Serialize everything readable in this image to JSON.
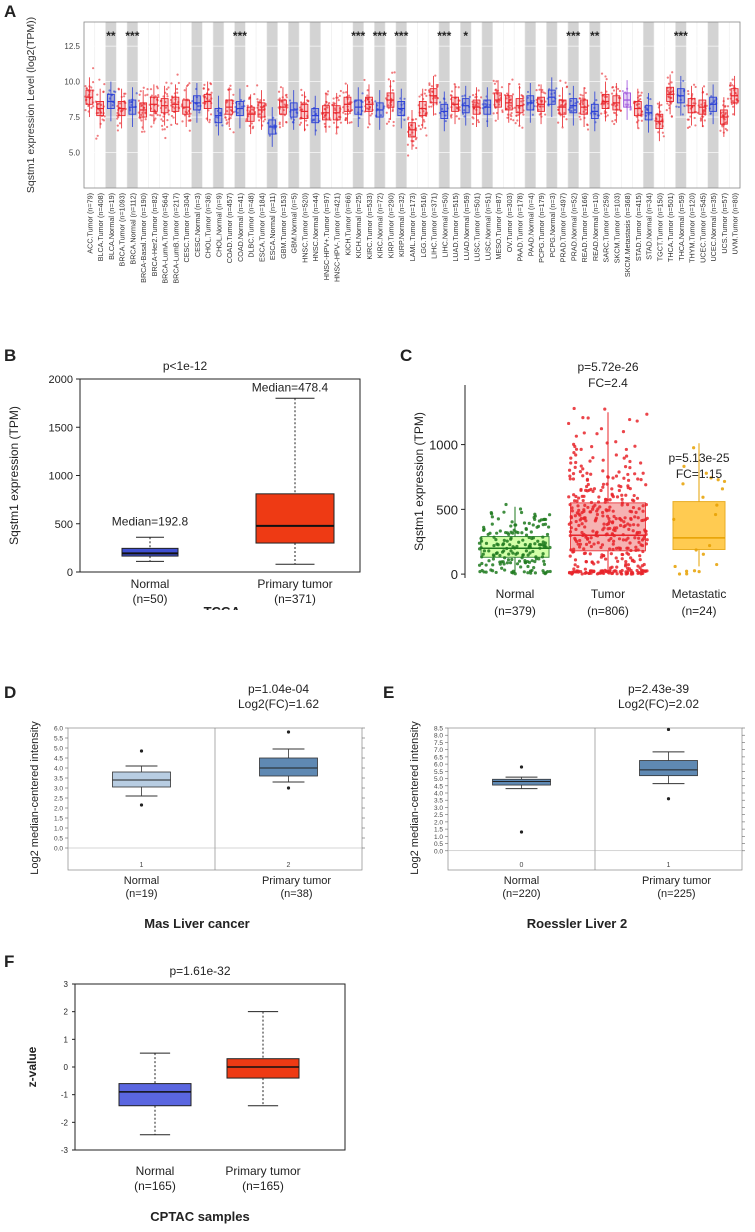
{
  "panels": {
    "A": "A",
    "B": "B",
    "C": "C",
    "D": "D",
    "E": "E",
    "F": "F"
  },
  "chart_data": [
    {
      "id": "A",
      "type": "box",
      "title": "",
      "ylabel": "Sqstm1 expression Level (log2(TPM))",
      "ylim": [
        2.5,
        14.2
      ],
      "yticks": [
        5.0,
        7.5,
        10.0,
        12.5
      ],
      "categories": [
        "ACC.Tumor (n=79)",
        "BLCA.Tumor (n=408)",
        "BLCA.Normal (n=19)",
        "BRCA.Tumor (n=1093)",
        "BRCA.Normal (n=112)",
        "BRCA-Basal.Tumor (n=190)",
        "BRCA-Her2.Tumor (n=82)",
        "BRCA-LumA.Tumor (n=564)",
        "BRCA-LumB.Tumor (n=217)",
        "CESC.Tumor (n=304)",
        "CESC.Normal (n=3)",
        "CHOL.Tumor (n=36)",
        "CHOL.Normal (n=9)",
        "COAD.Tumor (n=457)",
        "COAD.Normal (n=41)",
        "DLBC.Tumor (n=48)",
        "ESCA.Tumor (n=184)",
        "ESCA.Normal (n=11)",
        "GBM.Tumor (n=153)",
        "GBM.Normal (n=5)",
        "HNSC.Tumor (n=520)",
        "HNSC.Normal (n=44)",
        "HNSC-HPV+.Tumor (n=97)",
        "HNSC-HPV-.Tumor (n=421)",
        "KICH.Tumor (n=66)",
        "KICH.Normal (n=25)",
        "KIRC.Tumor (n=533)",
        "KIRC.Normal (n=72)",
        "KIRP.Tumor (n=290)",
        "KIRP.Normal (n=32)",
        "LAML.Tumor (n=173)",
        "LGG.Tumor (n=516)",
        "LIHC.Tumor (n=371)",
        "LIHC.Normal (n=50)",
        "LUAD.Tumor (n=515)",
        "LUAD.Normal (n=59)",
        "LUSC.Tumor (n=501)",
        "LUSC.Normal (n=51)",
        "MESO.Tumor (n=87)",
        "OV.Tumor (n=303)",
        "PAAD.Tumor (n=178)",
        "PAAD.Normal (n=4)",
        "PCPG.Tumor (n=179)",
        "PCPG.Normal (n=3)",
        "PRAD.Tumor (n=497)",
        "PRAD.Normal (n=52)",
        "READ.Tumor (n=166)",
        "READ.Normal (n=10)",
        "SARC.Tumor (n=259)",
        "SKCM.Tumor (n=103)",
        "SKCM.Metastasis (n=368)",
        "STAD.Tumor (n=415)",
        "STAD.Normal (n=34)",
        "TGCT.Tumor (n=150)",
        "THCA.Tumor (n=501)",
        "THCA.Normal (n=59)",
        "THYM.Tumor (n=120)",
        "UCEC.Tumor (n=545)",
        "UCEC.Normal (n=35)",
        "UCS.Tumor (n=57)",
        "UVM.Tumor (n=80)"
      ],
      "kind": [
        "t",
        "t",
        "n",
        "t",
        "n",
        "t",
        "t",
        "t",
        "t",
        "t",
        "n",
        "t",
        "n",
        "t",
        "n",
        "t",
        "t",
        "n",
        "t",
        "n",
        "t",
        "n",
        "t",
        "t",
        "t",
        "n",
        "t",
        "n",
        "t",
        "n",
        "t",
        "t",
        "t",
        "n",
        "t",
        "n",
        "t",
        "n",
        "t",
        "t",
        "t",
        "n",
        "t",
        "n",
        "t",
        "n",
        "t",
        "n",
        "t",
        "t",
        "m",
        "t",
        "n",
        "t",
        "t",
        "n",
        "t",
        "t",
        "n",
        "t",
        "t"
      ],
      "medians": [
        8.9,
        8.1,
        8.6,
        8.1,
        8.2,
        8.0,
        8.4,
        8.3,
        8.4,
        8.2,
        8.5,
        8.6,
        7.6,
        8.2,
        8.1,
        7.7,
        8.0,
        6.8,
        8.2,
        8.0,
        7.9,
        7.6,
        7.8,
        7.8,
        8.4,
        8.2,
        8.4,
        8.0,
        8.7,
        8.1,
        6.6,
        8.1,
        9.0,
        7.9,
        8.4,
        8.3,
        8.2,
        8.2,
        8.7,
        8.5,
        8.3,
        8.5,
        8.4,
        8.9,
        8.2,
        8.3,
        8.2,
        7.9,
        8.6,
        8.5,
        8.7,
        8.1,
        7.8,
        7.2,
        9.1,
        9.0,
        8.3,
        8.2,
        8.4,
        7.5,
        9.0
      ],
      "shaded": [
        2,
        4,
        10,
        12,
        14,
        17,
        19,
        21,
        25,
        27,
        29,
        33,
        35,
        37,
        41,
        43,
        45,
        47,
        52,
        55,
        58
      ],
      "stars": [
        [
          "**",
          2
        ],
        [
          "***",
          4
        ],
        [
          "***",
          14
        ],
        [
          "***",
          25
        ],
        [
          "***",
          27
        ],
        [
          "***",
          29
        ],
        [
          "***",
          33
        ],
        [
          "*",
          35
        ],
        [
          "***",
          45
        ],
        [
          "**",
          47
        ],
        [
          "***",
          55
        ]
      ],
      "colors": {
        "tumor": "#e8242a",
        "normal": "#2a3fd6",
        "metastasis": "#9b4ddb",
        "shade": "#d3d3d3"
      }
    },
    {
      "id": "B",
      "type": "box",
      "title": "p<1e-12",
      "ylabel": "Sqstm1 expression (TPM)",
      "xlabel": "TCGA",
      "ylim": [
        0,
        2000
      ],
      "yticks": [
        0,
        500,
        1000,
        1500,
        2000
      ],
      "categories": [
        "Normal\n(n=50)",
        "Primary tumor\n(n=371)"
      ],
      "cat_lines": [
        [
          "Normal",
          "(n=50)"
        ],
        [
          "Primary tumor",
          "(n=371)"
        ]
      ],
      "boxes": [
        {
          "min": 110,
          "q1": 165,
          "median": 192.8,
          "q3": 245,
          "max": 360,
          "color": "#3f4fd0"
        },
        {
          "min": 80,
          "q1": 300,
          "median": 478.4,
          "q3": 810,
          "max": 1800,
          "color": "#ee3a14"
        }
      ],
      "annotations": [
        "Median=192.8",
        "Median=478.4"
      ]
    },
    {
      "id": "C",
      "type": "box",
      "ylabel": "Sqstm1 expression (TPM)",
      "ylim": [
        -30,
        1460
      ],
      "yticks": [
        0,
        500,
        1000
      ],
      "cat_lines": [
        [
          "Normal",
          "(n=379)"
        ],
        [
          "Tumor",
          "(n=806)"
        ],
        [
          "Metastatic",
          "(n=24)"
        ]
      ],
      "boxes": [
        {
          "min": 10,
          "q1": 130,
          "median": 200,
          "q3": 290,
          "max": 520,
          "color": "#1f7a1f",
          "fill": "#ccff99"
        },
        {
          "min": 15,
          "q1": 180,
          "median": 300,
          "q3": 550,
          "max": 1250,
          "color": "#e8242a",
          "fill": "#f5a5a5"
        },
        {
          "min": 60,
          "q1": 190,
          "median": 280,
          "q3": 560,
          "max": 1010,
          "color": "#e6a000",
          "fill": "#ffc233"
        }
      ],
      "annotations": [
        [
          "p=5.72e-26",
          "FC=2.4"
        ],
        [
          "p=5.13e-25",
          "FC=1.15"
        ]
      ]
    },
    {
      "id": "D",
      "type": "box",
      "title_lines": [
        "p=1.04e-04",
        "Log2(FC)=1.62"
      ],
      "ylabel": "Log2 median-centered intensity",
      "xlabel": "Mas Liver cancer",
      "ylim": [
        -0.5,
        6.0
      ],
      "yticks": [
        0.0,
        0.5,
        1.0,
        1.5,
        2.0,
        2.5,
        3.0,
        3.5,
        4.0,
        4.5,
        5.0,
        5.5,
        6.0
      ],
      "xticks": [
        "1",
        "2"
      ],
      "cat_lines": [
        [
          "Normal",
          "(n=19)"
        ],
        [
          "Primary tumor",
          "(n=38)"
        ]
      ],
      "boxes": [
        {
          "min": 2.6,
          "q1": 3.05,
          "median": 3.4,
          "q3": 3.8,
          "max": 4.1,
          "outliers": [
            4.85,
            2.15
          ],
          "fill": "#b8cde2"
        },
        {
          "min": 3.3,
          "q1": 3.6,
          "median": 4.0,
          "q3": 4.5,
          "max": 4.95,
          "outliers": [
            5.8,
            3.0
          ],
          "fill": "#5f89b3"
        }
      ]
    },
    {
      "id": "E",
      "type": "box",
      "title_lines": [
        "p=2.43e-39",
        "Log2(FC)=2.02"
      ],
      "ylabel": "Log2 median-centered intensity",
      "xlabel": "Roessler Liver 2",
      "ylim": [
        -0.5,
        8.5
      ],
      "yticks": [
        0.0,
        0.5,
        1.0,
        1.5,
        2.0,
        2.5,
        3.0,
        3.5,
        4.0,
        4.5,
        5.0,
        5.5,
        6.0,
        6.5,
        7.0,
        7.5,
        8.0,
        8.5
      ],
      "xticks": [
        "0",
        "1"
      ],
      "cat_lines": [
        [
          "Normal",
          "(n=220)"
        ],
        [
          "Primary tumor",
          "(n=225)"
        ]
      ],
      "boxes": [
        {
          "min": 4.3,
          "q1": 4.55,
          "median": 4.8,
          "q3": 4.95,
          "max": 5.1,
          "outliers": [
            5.8,
            1.3
          ],
          "fill": "#5f89b3"
        },
        {
          "min": 4.65,
          "q1": 5.2,
          "median": 5.6,
          "q3": 6.25,
          "max": 6.85,
          "outliers": [
            8.4,
            3.6
          ],
          "fill": "#5f89b3"
        }
      ]
    },
    {
      "id": "F",
      "type": "box",
      "title": "p=1.61e-32",
      "ylabel": "z-value",
      "xlabel": "CPTAC samples",
      "ylim": [
        -3,
        3
      ],
      "yticks": [
        -3,
        -2,
        -1,
        0,
        1,
        2,
        3
      ],
      "cat_lines": [
        [
          "Normal",
          "(n=165)"
        ],
        [
          "Primary tumor",
          "(n=165)"
        ]
      ],
      "boxes": [
        {
          "min": -2.45,
          "q1": -1.4,
          "median": -0.9,
          "q3": -0.6,
          "max": 0.5,
          "color": "#5a66e0"
        },
        {
          "min": -1.4,
          "q1": -0.4,
          "median": 0.0,
          "q3": 0.3,
          "max": 2.0,
          "color": "#ee3a14"
        }
      ]
    }
  ]
}
